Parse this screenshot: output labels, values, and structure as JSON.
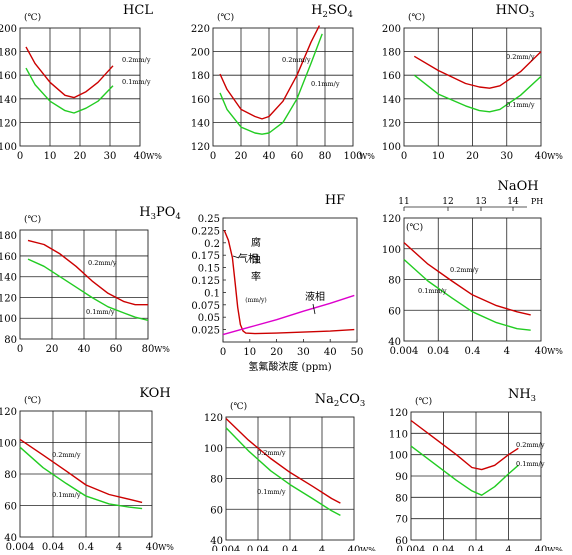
{
  "chart_data": [
    {
      "type": "line",
      "title": "HCL",
      "unit_label": "(℃)",
      "xlabel": "W%",
      "x_ticks": [
        "0",
        "10",
        "20",
        "30",
        "40"
      ],
      "y_ticks": [
        "100",
        "120",
        "140",
        "160",
        "180",
        "200"
      ],
      "xlim": [
        0,
        40
      ],
      "ylim": [
        100,
        200
      ],
      "series": [
        {
          "name": "0.2mm/y",
          "color": "#cc0000",
          "x": [
            2,
            5,
            10,
            15,
            18,
            22,
            26,
            31
          ],
          "y": [
            184,
            170,
            154,
            143,
            141,
            146,
            154,
            168
          ]
        },
        {
          "name": "0.1mm/y",
          "color": "#22cc22",
          "x": [
            2,
            5,
            10,
            15,
            18,
            22,
            26,
            31
          ],
          "y": [
            166,
            152,
            138,
            130,
            128,
            132,
            138,
            151
          ]
        }
      ]
    },
    {
      "type": "line",
      "title": "H2SO4",
      "unit_label": "(℃)",
      "xlabel": "W%",
      "x_ticks": [
        "0",
        "20",
        "40",
        "60",
        "80",
        "100"
      ],
      "y_ticks": [
        "120",
        "140",
        "160",
        "180",
        "200",
        "220"
      ],
      "xlim": [
        0,
        100
      ],
      "ylim": [
        120,
        220
      ],
      "series": [
        {
          "name": "0.2mm/y",
          "color": "#cc0000",
          "x": [
            5,
            10,
            20,
            30,
            35,
            40,
            50,
            60,
            70,
            76
          ],
          "y": [
            181,
            168,
            151,
            145,
            143,
            145,
            158,
            180,
            208,
            222
          ]
        },
        {
          "name": "0.1mm/y",
          "color": "#22cc22",
          "x": [
            5,
            10,
            20,
            30,
            35,
            40,
            50,
            60,
            70,
            78
          ],
          "y": [
            165,
            151,
            136,
            131,
            130,
            131,
            140,
            160,
            190,
            215
          ]
        }
      ]
    },
    {
      "type": "line",
      "title": "HNO3",
      "unit_label": "(℃)",
      "xlabel": "W%",
      "x_ticks": [
        "0",
        "10",
        "20",
        "30",
        "40"
      ],
      "y_ticks": [
        "100",
        "120",
        "140",
        "160",
        "180",
        "200"
      ],
      "xlim": [
        0,
        40
      ],
      "ylim": [
        100,
        200
      ],
      "series": [
        {
          "name": "0.2mm/y",
          "color": "#cc0000",
          "x": [
            3,
            10,
            18,
            22,
            25,
            28,
            34,
            40
          ],
          "y": [
            176,
            164,
            153,
            150,
            149,
            151,
            163,
            180
          ]
        },
        {
          "name": "0.1mm/y",
          "color": "#22cc22",
          "x": [
            3,
            10,
            18,
            22,
            25,
            28,
            34,
            40
          ],
          "y": [
            160,
            144,
            134,
            130,
            129,
            131,
            143,
            159
          ]
        }
      ]
    },
    {
      "type": "line",
      "title": "H3PO4",
      "unit_label": "(℃)",
      "xlabel": "W%",
      "x_ticks": [
        "0",
        "20",
        "40",
        "60",
        "80"
      ],
      "y_ticks": [
        "80",
        "100",
        "120",
        "140",
        "160",
        "180"
      ],
      "xlim": [
        0,
        80
      ],
      "ylim": [
        80,
        185
      ],
      "series": [
        {
          "name": "0.2mm/y",
          "color": "#cc0000",
          "x": [
            5,
            15,
            25,
            35,
            45,
            55,
            65,
            72,
            80
          ],
          "y": [
            175,
            171,
            162,
            150,
            136,
            124,
            116,
            113,
            113
          ]
        },
        {
          "name": "0.1mm/y",
          "color": "#22cc22",
          "x": [
            5,
            15,
            25,
            35,
            45,
            55,
            65,
            72,
            80
          ],
          "y": [
            157,
            150,
            140,
            130,
            120,
            111,
            105,
            101,
            98
          ]
        }
      ]
    },
    {
      "type": "line",
      "title": "HF",
      "ylabel": "腐蚀率",
      "ylabel_unit": "(mm/y)",
      "xlabel": "氢氟酸浓度 (ppm)",
      "x_ticks": [
        "0",
        "10",
        "20",
        "30",
        "40",
        "50"
      ],
      "y_ticks": [
        "0.025",
        "0.05",
        "0.075",
        "0.1",
        "0.125",
        "0.15",
        "0.175",
        "0.2",
        "0.225",
        "0.25"
      ],
      "xlim": [
        0,
        50
      ],
      "ylim": [
        0,
        0.25
      ],
      "annotations": [
        "气相",
        "液相"
      ],
      "series": [
        {
          "name": "气相",
          "color": "#cc0000",
          "x": [
            0.5,
            2,
            3.5,
            4.5,
            5.5,
            6.5,
            7.5,
            8.5,
            12,
            20,
            30,
            40,
            49
          ],
          "y": [
            0.225,
            0.205,
            0.17,
            0.12,
            0.07,
            0.035,
            0.022,
            0.018,
            0.017,
            0.018,
            0.02,
            0.022,
            0.025
          ]
        },
        {
          "name": "液相",
          "color": "#dd00cc",
          "x": [
            0,
            10,
            20,
            30,
            40,
            49
          ],
          "y": [
            0.015,
            0.03,
            0.045,
            0.062,
            0.078,
            0.094
          ]
        }
      ]
    },
    {
      "type": "line",
      "title": "NaOH",
      "unit_label": "(℃)",
      "xlabel": "W%",
      "top_label": "PH",
      "top_ticks": [
        "11",
        "12",
        "13",
        "14"
      ],
      "x_ticks": [
        "0.004",
        "0.04",
        "0.4",
        "4",
        "40"
      ],
      "y_ticks": [
        "40",
        "60",
        "80",
        "100",
        "120"
      ],
      "ylim": [
        40,
        120
      ],
      "series": [
        {
          "name": "0.2mm/y",
          "color": "#cc0000",
          "x": [
            0.004,
            0.02,
            0.1,
            0.4,
            2,
            8,
            20
          ],
          "y": [
            104,
            90,
            79,
            70,
            63,
            59,
            57
          ]
        },
        {
          "name": "0.1mm/y",
          "color": "#22cc22",
          "x": [
            0.004,
            0.02,
            0.1,
            0.4,
            2,
            8,
            20
          ],
          "y": [
            93,
            79,
            68,
            59,
            52,
            48,
            47
          ]
        }
      ]
    },
    {
      "type": "line",
      "title": "KOH",
      "unit_label": "(℃)",
      "xlabel": "W%",
      "x_ticks": [
        "0.004",
        "0.04",
        "0.4",
        "4",
        "40"
      ],
      "y_ticks": [
        "40",
        "60",
        "80",
        "100",
        "120"
      ],
      "ylim": [
        40,
        120
      ],
      "series": [
        {
          "name": "0.2mm/y",
          "color": "#cc0000",
          "x": [
            0.004,
            0.02,
            0.1,
            0.4,
            2,
            8,
            20
          ],
          "y": [
            102,
            92,
            82,
            73,
            67,
            64,
            62
          ]
        },
        {
          "name": "0.1mm/y",
          "color": "#22cc22",
          "x": [
            0.004,
            0.02,
            0.1,
            0.4,
            2,
            8,
            20
          ],
          "y": [
            97,
            84,
            74,
            66,
            61,
            59,
            58
          ]
        }
      ]
    },
    {
      "type": "line",
      "title": "Na2CO3",
      "unit_label": "(℃)",
      "xlabel": "W%",
      "x_ticks": [
        "0.004",
        "0.04",
        "0.4",
        "4",
        "40"
      ],
      "y_ticks": [
        "40",
        "60",
        "80",
        "100",
        "120"
      ],
      "ylim": [
        40,
        120
      ],
      "series": [
        {
          "name": "0.2mm/y",
          "color": "#cc0000",
          "x": [
            0.004,
            0.02,
            0.1,
            0.4,
            2,
            8,
            15
          ],
          "y": [
            119,
            105,
            93,
            84,
            75,
            67,
            64
          ]
        },
        {
          "name": "0.1mm/y",
          "color": "#22cc22",
          "x": [
            0.004,
            0.02,
            0.1,
            0.4,
            2,
            8,
            15
          ],
          "y": [
            113,
            98,
            85,
            76,
            67,
            59,
            56
          ]
        }
      ]
    },
    {
      "type": "line",
      "title": "NH3",
      "unit_label": "(℃)",
      "xlabel": "W%",
      "x_ticks": [
        "0.004",
        "0.04",
        "0.4",
        "4",
        "40"
      ],
      "y_ticks": [
        "60",
        "70",
        "80",
        "90",
        "100",
        "110",
        "120"
      ],
      "ylim": [
        60,
        120
      ],
      "series": [
        {
          "name": "0.2mm/y",
          "color": "#cc0000",
          "x": [
            0.004,
            0.02,
            0.1,
            0.3,
            0.6,
            1.5,
            4,
            8
          ],
          "y": [
            116,
            108,
            100,
            94,
            93,
            95,
            100,
            103
          ]
        },
        {
          "name": "0.1mm/y",
          "color": "#22cc22",
          "x": [
            0.004,
            0.02,
            0.1,
            0.3,
            0.6,
            1.5,
            4,
            8
          ],
          "y": [
            104,
            96,
            88,
            83,
            81,
            85,
            91,
            95
          ]
        }
      ]
    }
  ]
}
